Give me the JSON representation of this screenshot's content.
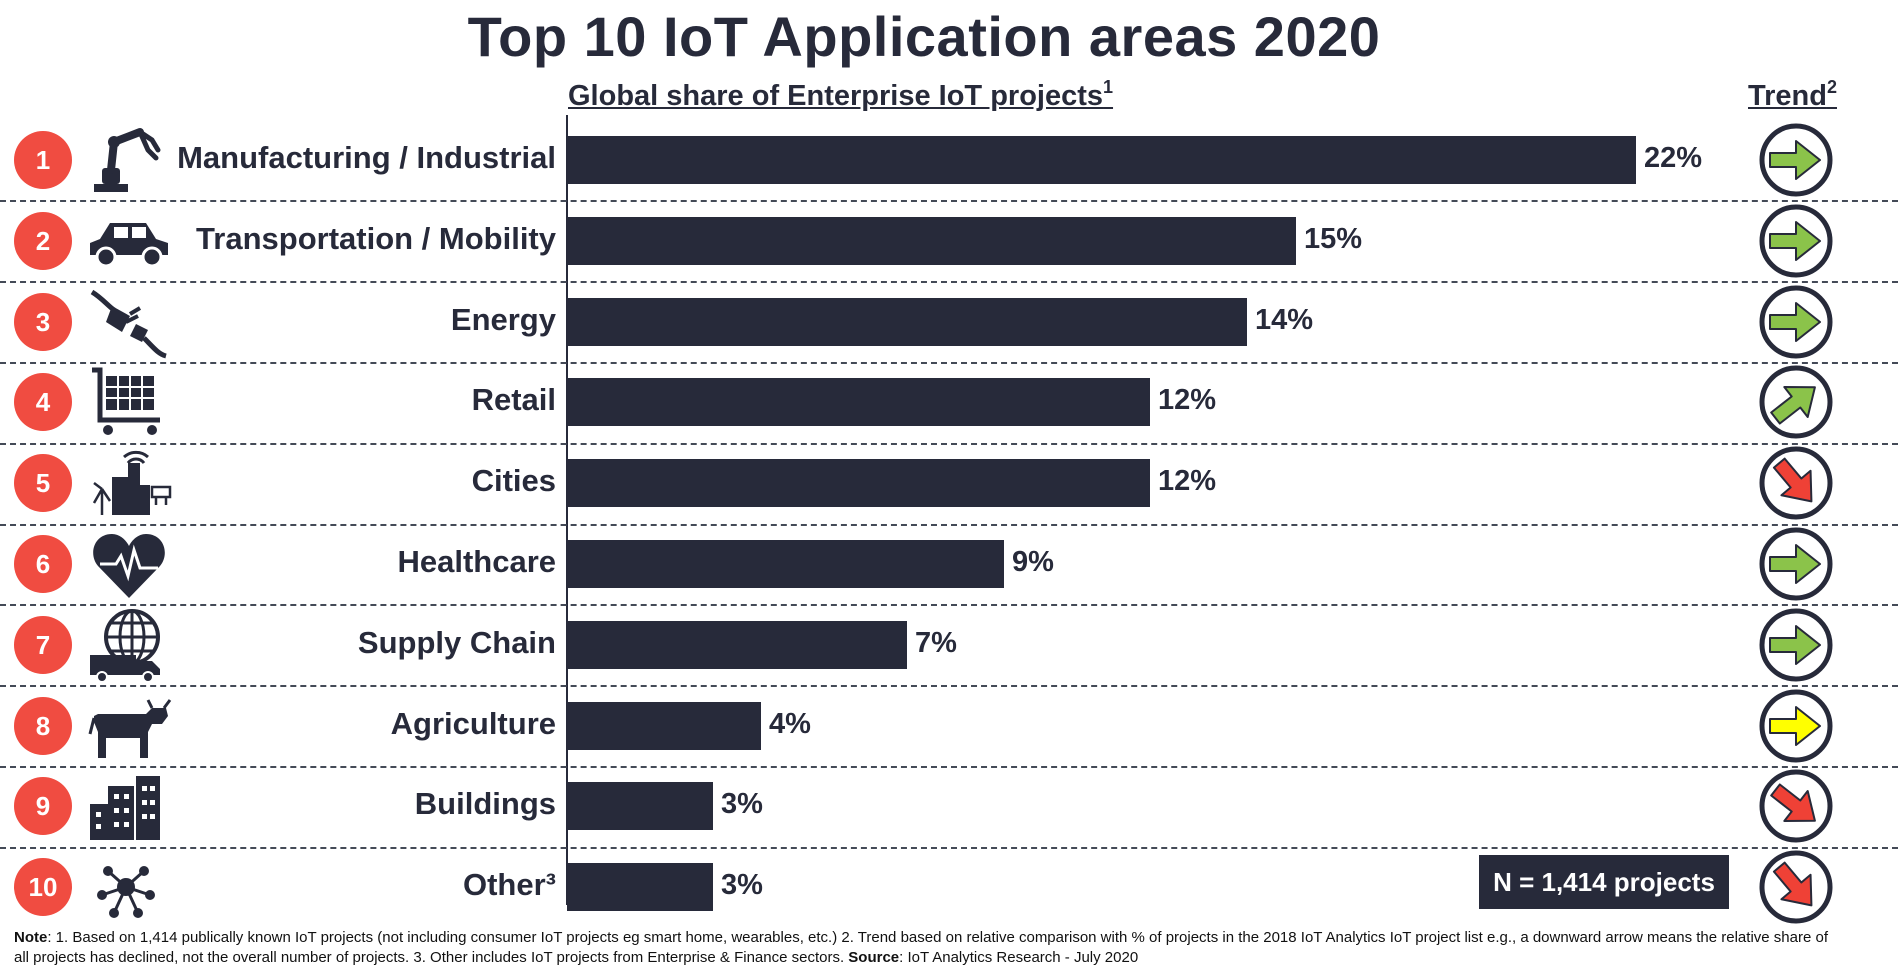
{
  "title": "Top 10 IoT Application areas 2020",
  "subtitle": "Global share of Enterprise IoT projects",
  "subtitle_sup": "1",
  "trend_header": "Trend",
  "trend_header_sup": "2",
  "n_box": "N = 1,414 projects",
  "note": {
    "label": "Note",
    "text": ": 1. Based on 1,414 publically known IoT projects (not including consumer IoT projects eg smart home, wearables, etc.) 2. Trend based on relative comparison with % of projects in the 2018 IoT Analytics IoT project list e.g., a downward arrow means the relative share of all projects has declined, not the overall number of projects. 3. Other includes IoT projects from Enterprise & Finance sectors.  ",
    "source_label": "Source",
    "source_text": ": IoT Analytics Research - July 2020"
  },
  "colors": {
    "bar": "#272a3a",
    "rank_badge": "#f04c41",
    "trend_up": "#8bc34a",
    "trend_flat": "#ffff00",
    "trend_down": "#ef4136"
  },
  "chart_data": {
    "type": "bar",
    "orientation": "horizontal",
    "title": "Top 10 IoT Application areas 2020",
    "xlabel": "Global share of Enterprise IoT projects",
    "xlim": [
      0,
      22
    ],
    "grid": false,
    "categories": [
      "Manufacturing / Industrial",
      "Transportation / Mobility",
      "Energy",
      "Retail",
      "Cities",
      "Healthcare",
      "Supply Chain",
      "Agriculture",
      "Buildings",
      "Other³"
    ],
    "values": [
      22,
      15,
      14,
      12,
      12,
      9,
      7,
      4,
      3,
      3
    ],
    "value_labels": [
      "22%",
      "15%",
      "14%",
      "12%",
      "12%",
      "9%",
      "7%",
      "4%",
      "3%",
      "3%"
    ],
    "ranks": [
      "1",
      "2",
      "3",
      "4",
      "5",
      "6",
      "7",
      "8",
      "9",
      "10"
    ],
    "icons": [
      "robot-arm-icon",
      "car-icon",
      "plug-icon",
      "shopping-cart-icon",
      "smart-city-icon",
      "heart-pulse-icon",
      "globe-truck-icon",
      "cow-icon",
      "buildings-icon",
      "network-hub-icon"
    ],
    "trends": [
      "up",
      "up",
      "up",
      "up-strong",
      "down",
      "up",
      "up",
      "flat",
      "down-strong",
      "down"
    ]
  }
}
